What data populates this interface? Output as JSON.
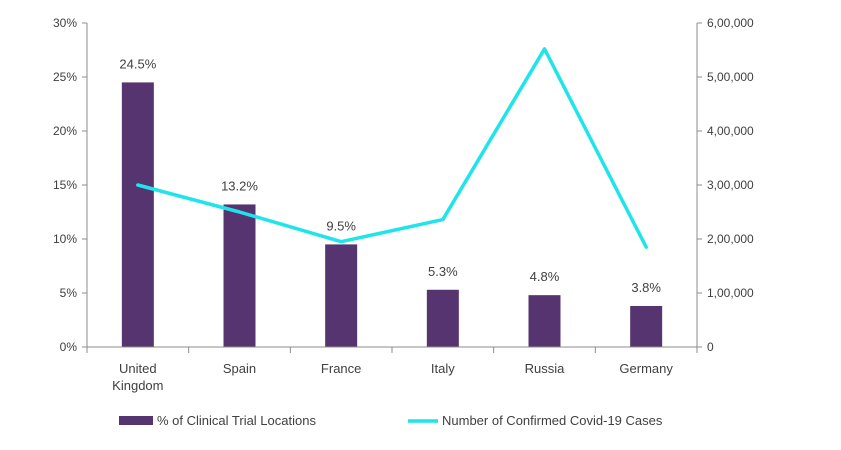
{
  "chart_data": {
    "type": "bar+line",
    "categories": [
      "United Kingdom",
      "Spain",
      "France",
      "Italy",
      "Russia",
      "Germany"
    ],
    "category_lines": [
      [
        "United",
        "Kingdom"
      ],
      [
        "Spain"
      ],
      [
        "France"
      ],
      [
        "Italy"
      ],
      [
        "Russia"
      ],
      [
        "Germany"
      ]
    ],
    "series": [
      {
        "name": "% of Clinical Trial Locations",
        "type": "bar",
        "axis": "left",
        "values": [
          24.5,
          13.2,
          9.5,
          5.3,
          4.8,
          3.8
        ],
        "labels": [
          "24.5%",
          "13.2%",
          "9.5%",
          "5.3%",
          "4.8%",
          "3.8%"
        ],
        "color": "#563470"
      },
      {
        "name": "Number of Confirmed Covid-19 Cases",
        "type": "line",
        "axis": "right",
        "values": [
          300000,
          250000,
          195000,
          236000,
          552000,
          185000
        ],
        "color": "#1fe5ea"
      }
    ],
    "y_left": {
      "min": 0,
      "max": 30,
      "ticks": [
        0,
        5,
        10,
        15,
        20,
        25,
        30
      ],
      "tick_labels": [
        "0%",
        "5%",
        "10%",
        "15%",
        "20%",
        "25%",
        "30%"
      ]
    },
    "y_right": {
      "min": 0,
      "max": 600000,
      "ticks": [
        0,
        100000,
        200000,
        300000,
        400000,
        500000,
        600000
      ],
      "tick_labels": [
        "0",
        "1,00,000",
        "2,00,000",
        "3,00,000",
        "4,00,000",
        "5,00,000",
        "6,00,000"
      ]
    },
    "grid": false,
    "legend_position": "bottom"
  }
}
